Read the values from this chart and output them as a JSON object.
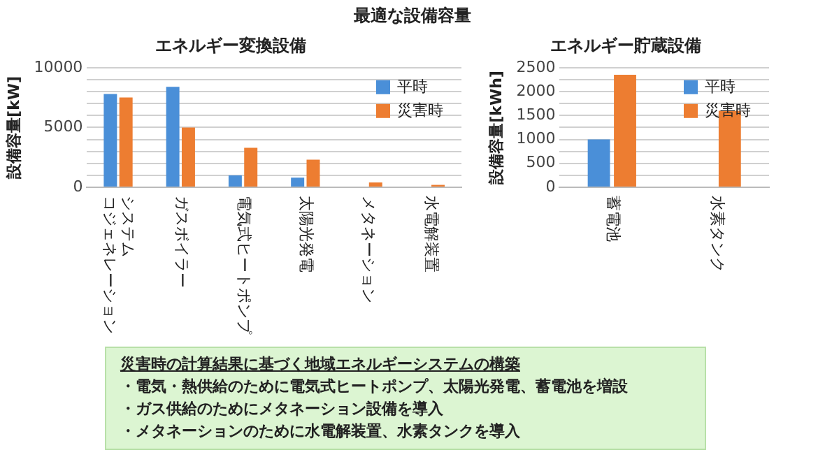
{
  "chart_data": [
    {
      "type": "other",
      "title": "最適な設備容量"
    },
    {
      "type": "bar",
      "title": "エネルギー変換設備",
      "ylabel": "設備容量[kW]",
      "categories": [
        "システムコジェネレーション",
        "ガスボイラー",
        "電気式ヒートポンプ",
        "太陽光発電",
        "メタネーション",
        "水電解装置"
      ],
      "series": [
        {
          "name": "平時",
          "color": "#4a8fd8",
          "values": [
            7800,
            8400,
            1000,
            800,
            0,
            0
          ]
        },
        {
          "name": "災害時",
          "color": "#ed7d31",
          "values": [
            7500,
            5000,
            3300,
            2300,
            400,
            200
          ]
        }
      ],
      "ylim": [
        0,
        10000
      ],
      "yticks": [
        0,
        {
          "value": 1000,
          "label": null
        },
        {
          "value": 2000,
          "label": null
        },
        {
          "value": 3000,
          "label": null
        },
        {
          "value": 4000,
          "label": null
        },
        5000,
        {
          "value": 6000,
          "label": null
        },
        {
          "value": 7000,
          "label": null
        },
        {
          "value": 8000,
          "label": null
        },
        {
          "value": 9000,
          "label": null
        },
        10000
      ],
      "grid": "y",
      "legend": "top right"
    },
    {
      "type": "bar",
      "title": "エネルギー貯蔵設備",
      "ylabel": "設備容量[kWh]",
      "categories": [
        "蓄電池",
        "水素タンク"
      ],
      "series": [
        {
          "name": "平時",
          "color": "#4a8fd8",
          "values": [
            1000,
            0
          ]
        },
        {
          "name": "災害時",
          "color": "#ed7d31",
          "values": [
            2350,
            1600
          ]
        }
      ],
      "ylim": [
        0,
        2500
      ],
      "yticks": [
        0,
        {
          "value": 250,
          "label": null
        },
        500,
        {
          "value": 750,
          "label": null
        },
        1000,
        {
          "value": 1250,
          "label": null
        },
        1500,
        {
          "value": 1750,
          "label": null
        },
        2000,
        {
          "value": 2250,
          "label": null
        },
        2500
      ],
      "grid": "y",
      "legend": "top right"
    },
    {
      "type": "other",
      "title": "災害時の計算結果に基づく地域エネルギーシステムの構築",
      "annotations": [
        "・電気・熱供給のために電気式ヒートポンプ、太陽光発電、蓄電池を増設",
        "・ガス供給のためにメタネーション設備を導入",
        "・メタネーションのために水電解装置、水素タンクを導入"
      ]
    }
  ]
}
